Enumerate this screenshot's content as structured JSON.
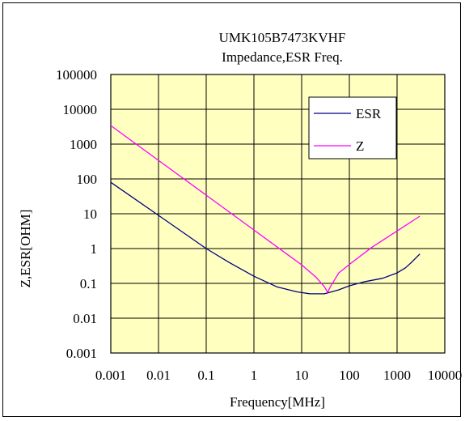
{
  "chart_data": {
    "type": "line",
    "title": "UMK105B7473KVHF",
    "subtitle": "Impedance,ESR Freq.",
    "xlabel": "Frequency[MHz]",
    "ylabel": "Z,ESR[OHM]",
    "x_scale": "log",
    "y_scale": "log",
    "xlim": [
      0.001,
      10000
    ],
    "ylim": [
      0.001,
      100000
    ],
    "x_ticks": [
      0.001,
      0.01,
      0.1,
      1,
      10,
      100,
      1000,
      10000
    ],
    "x_tick_labels": [
      "0.001",
      "0.01",
      "0.1",
      "1",
      "10",
      "100",
      "1000",
      "10000"
    ],
    "y_ticks": [
      0.001,
      0.01,
      0.1,
      1,
      10,
      100,
      1000,
      10000,
      100000
    ],
    "y_tick_labels": [
      "0.001",
      "0.01",
      "0.1",
      "1",
      "10",
      "100",
      "1000",
      "10000",
      "100000"
    ],
    "grid": true,
    "legend_position": "top-right",
    "plot_background": "#ffffc0",
    "series": [
      {
        "name": "ESR",
        "color": "#000080",
        "x": [
          0.001,
          0.01,
          0.1,
          0.3,
          1,
          3,
          8,
          15,
          30,
          60,
          100,
          200,
          500,
          1000,
          1500,
          2000,
          3000
        ],
        "y": [
          80,
          9,
          1,
          0.4,
          0.16,
          0.08,
          0.057,
          0.05,
          0.05,
          0.065,
          0.085,
          0.11,
          0.14,
          0.2,
          0.28,
          0.4,
          0.7
        ]
      },
      {
        "name": "Z",
        "color": "#ff00ff",
        "x": [
          0.001,
          0.01,
          0.1,
          1,
          5,
          10,
          20,
          30,
          35,
          40,
          60,
          100,
          300,
          1000,
          3000
        ],
        "y": [
          3400,
          340,
          34,
          3.4,
          0.68,
          0.34,
          0.15,
          0.08,
          0.055,
          0.08,
          0.2,
          0.35,
          1.1,
          3.2,
          8.5
        ]
      }
    ]
  }
}
